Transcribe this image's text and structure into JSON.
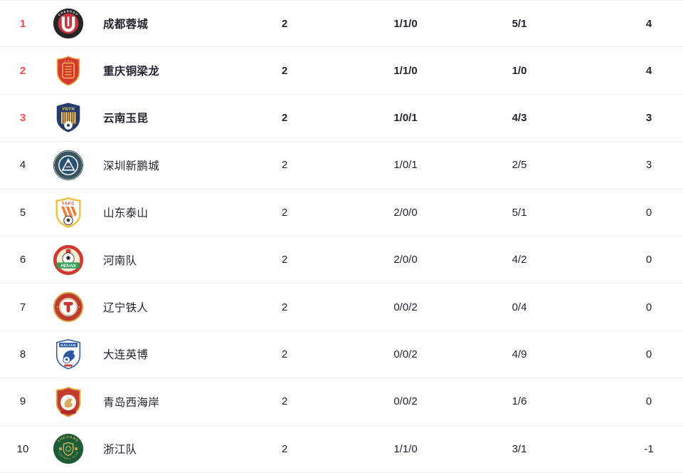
{
  "theme": {
    "top_rank_color": "#f1494f",
    "text_color": "#21252e",
    "divider_color": "#eef0f6",
    "row_background": "#ffffff"
  },
  "table": {
    "rows": [
      {
        "rank": "1",
        "team": "成都蓉城",
        "played": "2",
        "record": "1/1/0",
        "goals": "5/1",
        "points": "4",
        "logo": {
          "style": "chengdu",
          "ring_text": "CHENGDU",
          "ring": "#262626",
          "inner": "#c53641",
          "emblem": "#ffffff"
        }
      },
      {
        "rank": "2",
        "team": "重庆铜梁龙",
        "played": "2",
        "record": "1/1/0",
        "goals": "1/0",
        "points": "4",
        "logo": {
          "style": "chongqing",
          "fill": "#d23a31",
          "border": "#e8a33d",
          "pattern": "#efb54c"
        }
      },
      {
        "rank": "3",
        "team": "云南玉昆",
        "played": "2",
        "record": "1/0/1",
        "goals": "4/3",
        "points": "3",
        "logo": {
          "style": "yunnan",
          "text": "YNYK",
          "shield": "#253a6d",
          "text_color": "#f3c94e",
          "stripes": "#ef9f3d",
          "stripes2": "#f3c94e",
          "ball": "#ffffff"
        }
      },
      {
        "rank": "4",
        "team": "深圳新鹏城",
        "played": "2",
        "record": "1/0/1",
        "goals": "2/5",
        "points": "3",
        "logo": {
          "style": "shenzhen",
          "ring": "#3a555f",
          "disc": "#2c4f74",
          "emblem": "#ffffff"
        }
      },
      {
        "rank": "5",
        "team": "山东泰山",
        "played": "2",
        "record": "2/0/0",
        "goals": "5/1",
        "points": "0",
        "logo": {
          "style": "shandong",
          "text": "TSFC",
          "border": "#f2c23e",
          "field": "#ffffff",
          "text_color": "#d3322c",
          "stripes": "#ef7f3a",
          "ball": "#2b2b2b"
        }
      },
      {
        "rank": "6",
        "team": "河南队",
        "played": "2",
        "record": "2/0/0",
        "goals": "4/2",
        "points": "0",
        "logo": {
          "style": "henan",
          "text": "HENAN",
          "outer": "#d03a30",
          "inner": "#f4ecd4",
          "banner": "#2f9e53",
          "text_color": "#ffffff"
        }
      },
      {
        "rank": "7",
        "team": "辽宁铁人",
        "played": "2",
        "record": "0/0/2",
        "goals": "0/4",
        "points": "0",
        "logo": {
          "style": "liaoning",
          "rim": "#d8a442",
          "ring": "#bf3a31",
          "disc": "#ffffff",
          "emblem": "#c0392f"
        }
      },
      {
        "rank": "8",
        "team": "大连英博",
        "played": "2",
        "record": "0/0/2",
        "goals": "4/9",
        "points": "0",
        "logo": {
          "style": "dalian",
          "text": "DALIAN",
          "border": "#2b5aa7",
          "field": "#ffffff",
          "text_color": "#ffffff",
          "accent": "#c8372f"
        }
      },
      {
        "rank": "9",
        "team": "青岛西海岸",
        "played": "2",
        "record": "0/0/2",
        "goals": "1/6",
        "points": "0",
        "logo": {
          "style": "qingdao",
          "border": "#e2a73f",
          "fill": "#c43a30",
          "inner": "#f6f3ec",
          "horse": "#d8a95a",
          "ribbon": "#a92c26"
        }
      },
      {
        "rank": "10",
        "team": "浙江队",
        "played": "2",
        "record": "1/1/0",
        "goals": "3/1",
        "points": "-1",
        "logo": {
          "style": "zhejiang",
          "text_top": "ZHEJIANG",
          "text_bottom": "FOOTBALL CLUB",
          "disc": "#1c5b38",
          "border": "#d9b65a",
          "shield": "#1e6340",
          "text_color": "#d9b65a"
        }
      }
    ]
  }
}
